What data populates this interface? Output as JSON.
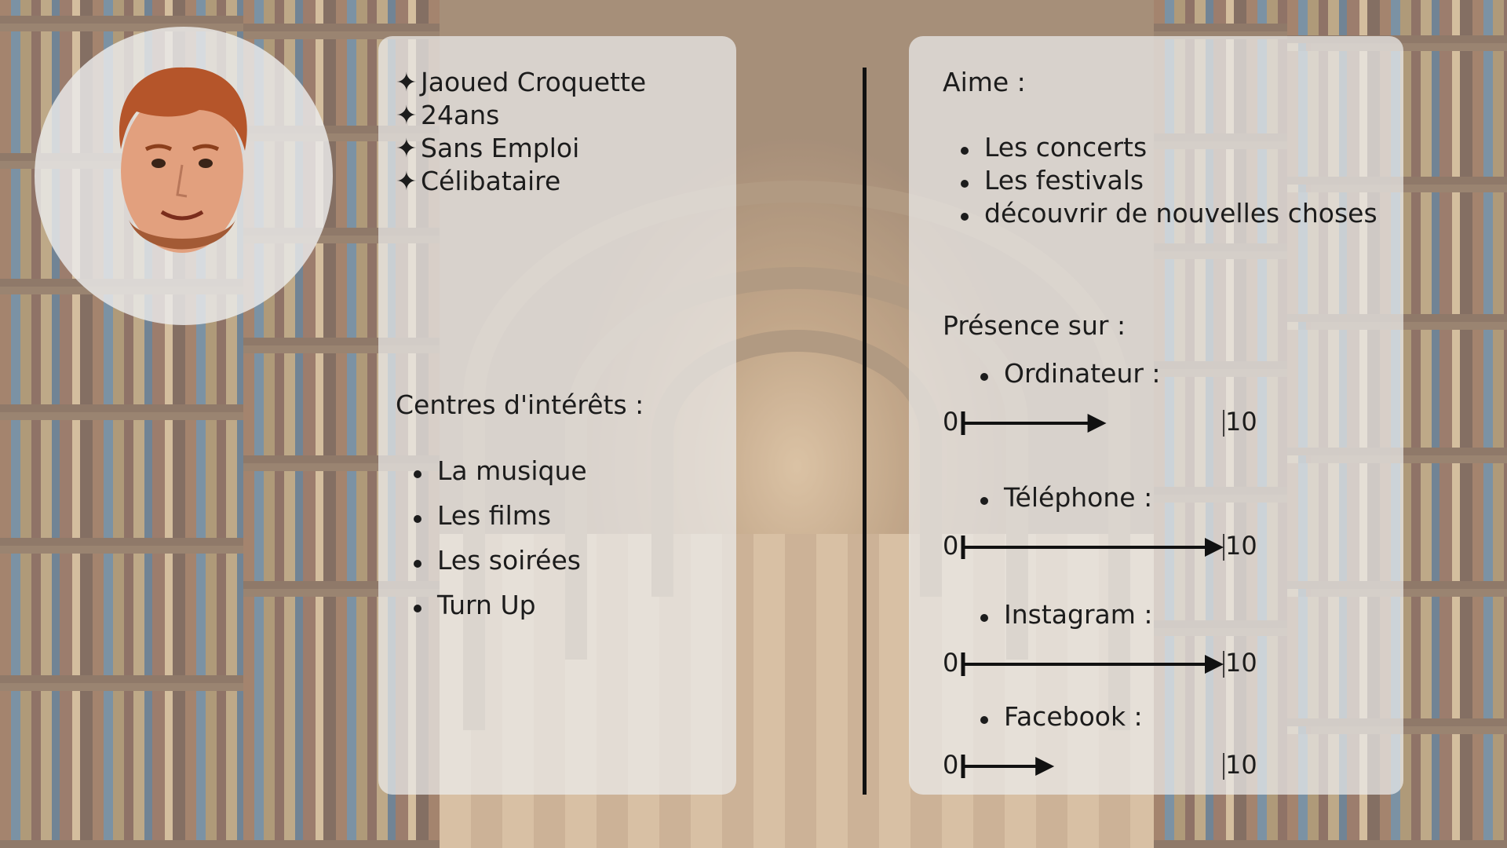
{
  "profile": {
    "name": "Jaoued Croquette",
    "age": "24ans",
    "job": "Sans Emploi",
    "status": "Célibataire",
    "star_glyph": "✦"
  },
  "interests": {
    "heading": "Centres d'intérêts :",
    "items": [
      "La musique",
      "Les films",
      "Les soirées",
      "Turn Up"
    ]
  },
  "likes": {
    "heading": "Aime :",
    "items": [
      "Les concerts",
      "Les festivals",
      "découvrir de nouvelles choses"
    ]
  },
  "presence": {
    "heading": "Présence sur :",
    "scale_min": "0",
    "scale_max": "10",
    "items": [
      {
        "label": "Ordinateur :",
        "value": 5.5
      },
      {
        "label": "Téléphone :",
        "value": 10
      },
      {
        "label": "Instagram :",
        "value": 10
      },
      {
        "label": "Facebook :",
        "value": 3.5
      }
    ]
  },
  "colors": {
    "panel": "#ececec",
    "text": "#1c1c1c",
    "arrow": "#111111",
    "hair": "#b5552a",
    "skin": "#e2a07e"
  },
  "icons": {
    "avatar": "avatar-photo",
    "star": "star-icon",
    "arrow": "arrow-right-icon"
  }
}
